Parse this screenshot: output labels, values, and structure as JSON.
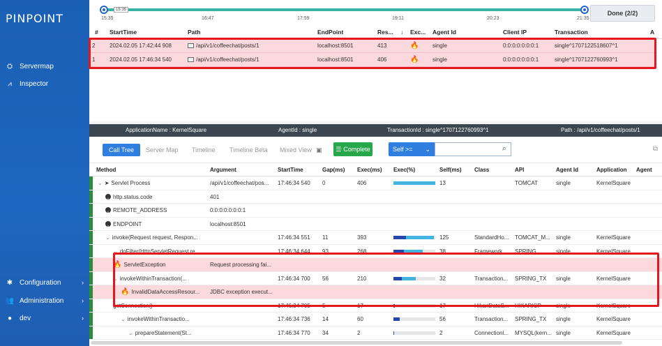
{
  "app": {
    "logo": "PINPOINT"
  },
  "sidebar": {
    "items": [
      {
        "label": "Servermap",
        "icon": "servermap-icon",
        "glyph": "⛭",
        "chevron": ""
      },
      {
        "label": "Inspector",
        "icon": "chart-icon",
        "glyph": "⩘",
        "chevron": ""
      },
      {
        "label": "Configuration",
        "icon": "gear-icon",
        "glyph": "✱",
        "chevron": "›"
      },
      {
        "label": "Administration",
        "icon": "users-icon",
        "glyph": "👥",
        "chevron": "›"
      },
      {
        "label": "dev",
        "icon": "user-icon",
        "glyph": "●",
        "chevron": "›"
      }
    ]
  },
  "timeline": {
    "bubble": "15:35",
    "labels": [
      "15:35",
      "16:47",
      "17:59",
      "19:11",
      "20:23",
      "21:35"
    ],
    "done_label": "Done (2/2)"
  },
  "transactions": {
    "columns": [
      "#",
      "StartTime",
      "Path",
      "EndPoint",
      "Res...",
      "↓",
      "Exc...",
      "Agent Id",
      "Client IP",
      "Transaction",
      "A"
    ],
    "rows": [
      {
        "num": "2",
        "start": "2024.02.05 17:42:44 908",
        "path": "/api/v1/coffeechat/posts/1",
        "endpoint": "localhost:8501",
        "res": "413",
        "exc": "🔥",
        "agent": "single",
        "client_ip": "0:0:0:0:0:0:0:1",
        "txid": "single^1707122518607^1"
      },
      {
        "num": "1",
        "start": "2024.02.05 17:46:34 540",
        "path": "/api/v1/coffeechat/posts/1",
        "endpoint": "localhost:8501",
        "res": "406",
        "exc": "🔥",
        "agent": "single",
        "client_ip": "0:0:0:0:0:0:0:1",
        "txid": "single^1707122760993^1"
      }
    ]
  },
  "infobar": {
    "application": "ApplicationName : KernelSquare",
    "agent": "AgentId : single",
    "transaction": "TransactionId : single^1707122760993^1",
    "path": "Path : /api/v1/coffeechat/posts/1"
  },
  "tabs": {
    "items": [
      "Call Tree",
      "Server Map",
      "Timeline",
      "Timeline Beta",
      "Mixed View"
    ],
    "complete": "Complete",
    "self_select": "Self >=",
    "search_placeholder": ""
  },
  "calltree": {
    "columns": [
      "Method",
      "Argument",
      "StartTime",
      "Gap(ms)",
      "Exec(ms)",
      "Exec(%)",
      "Self(ms)",
      "Class",
      "API",
      "Agent Id",
      "Application",
      "Agent"
    ],
    "rows": [
      {
        "method": "Servlet Process",
        "kind": "root",
        "indent": 0,
        "arg": "/api/v1/coffeechat/pos...",
        "start": "17:46:34 540",
        "gap": "0",
        "exec": "406",
        "pct_dark": 0,
        "pct_light": 1.0,
        "self": "13",
        "cls": "",
        "api": "TOMCAT",
        "agent": "single",
        "app": "KernelSquare",
        "err": false
      },
      {
        "method": "http.status.code",
        "kind": "info",
        "indent": 1,
        "arg": "401",
        "start": "",
        "gap": "",
        "exec": "",
        "pct_dark": null,
        "pct_light": null,
        "self": "",
        "cls": "",
        "api": "",
        "agent": "",
        "app": "",
        "err": false
      },
      {
        "method": "REMOTE_ADDRESS",
        "kind": "info",
        "indent": 1,
        "arg": "0:0:0:0:0:0:0:1",
        "start": "",
        "gap": "",
        "exec": "",
        "pct_dark": null,
        "pct_light": null,
        "self": "",
        "cls": "",
        "api": "",
        "agent": "",
        "app": "",
        "err": false
      },
      {
        "method": "ENDPOINT",
        "kind": "info",
        "indent": 1,
        "arg": "localhost:8501",
        "start": "",
        "gap": "",
        "exec": "",
        "pct_dark": null,
        "pct_light": null,
        "self": "",
        "cls": "",
        "api": "",
        "agent": "",
        "app": "",
        "err": false
      },
      {
        "method": "invoke(Request request, Respon...",
        "kind": "caret",
        "indent": 1,
        "arg": "",
        "start": "17:46:34 551",
        "gap": "11",
        "exec": "393",
        "pct_dark": 0.3,
        "pct_light": 0.67,
        "self": "125",
        "cls": "StandardHo...",
        "api": "TOMCAT_M...",
        "agent": "single",
        "app": "KernelSquare",
        "err": false
      },
      {
        "method": "doFilter(HttpServletRequest re...",
        "kind": "caret",
        "indent": 2,
        "arg": "",
        "start": "17:46:34 644",
        "gap": "93",
        "exec": "268",
        "pct_dark": 0.25,
        "pct_light": 0.45,
        "self": "38",
        "cls": "Framework...",
        "api": "SPRING",
        "agent": "single",
        "app": "KernelSquare",
        "err": false
      },
      {
        "method": "ServletException",
        "kind": "fire",
        "indent": 2,
        "arg": "Request processing fai...",
        "start": "",
        "gap": "",
        "exec": "",
        "pct_dark": null,
        "pct_light": null,
        "self": "",
        "cls": "",
        "api": "",
        "agent": "",
        "app": "",
        "err": true
      },
      {
        "method": "invokeWithinTransaction(...",
        "kind": "caret",
        "indent": 2,
        "arg": "",
        "start": "17:46:34 700",
        "gap": "56",
        "exec": "210",
        "pct_dark": 0.2,
        "pct_light": 0.34,
        "self": "32",
        "cls": "Transaction...",
        "api": "SPRING_TX",
        "agent": "single",
        "app": "KernelSquare",
        "err": false
      },
      {
        "method": "InvalidDataAccessResour...",
        "kind": "fire",
        "indent": 3,
        "arg": "JDBC exception execut...",
        "start": "",
        "gap": "",
        "exec": "",
        "pct_dark": null,
        "pct_light": null,
        "self": "",
        "cls": "",
        "api": "",
        "agent": "",
        "app": "",
        "err": true
      },
      {
        "method": "getConnection()",
        "kind": "plain",
        "indent": 2,
        "arg": "",
        "start": "17:46:34 705",
        "gap": "5",
        "exec": "17",
        "pct_dark": 0.04,
        "pct_light": 0,
        "self": "17",
        "cls": "HikariDataS...",
        "api": "HIKARICP",
        "agent": "single",
        "app": "KernelSquare",
        "err": false
      },
      {
        "method": "invokeWithinTransactio...",
        "kind": "caret",
        "indent": 3,
        "arg": "",
        "start": "17:46:34 736",
        "gap": "14",
        "exec": "60",
        "pct_dark": 0.15,
        "pct_light": 0,
        "self": "56",
        "cls": "Transaction...",
        "api": "SPRING_TX",
        "agent": "single",
        "app": "KernelSquare",
        "err": false
      },
      {
        "method": "prepareStatement(St...",
        "kind": "caret",
        "indent": 4,
        "arg": "",
        "start": "17:46:34 770",
        "gap": "34",
        "exec": "2",
        "pct_dark": 0.01,
        "pct_light": 0,
        "self": "2",
        "cls": "Connectionl...",
        "api": "MYSQL(kern...",
        "agent": "single",
        "app": "KernelSquare",
        "err": false
      }
    ]
  },
  "colors": {
    "sidebar": "#1d5eb1",
    "error_row": "#fbd9dc",
    "highlight": "#e5161d",
    "primary": "#2f7fe0",
    "complete": "#27a74a"
  }
}
